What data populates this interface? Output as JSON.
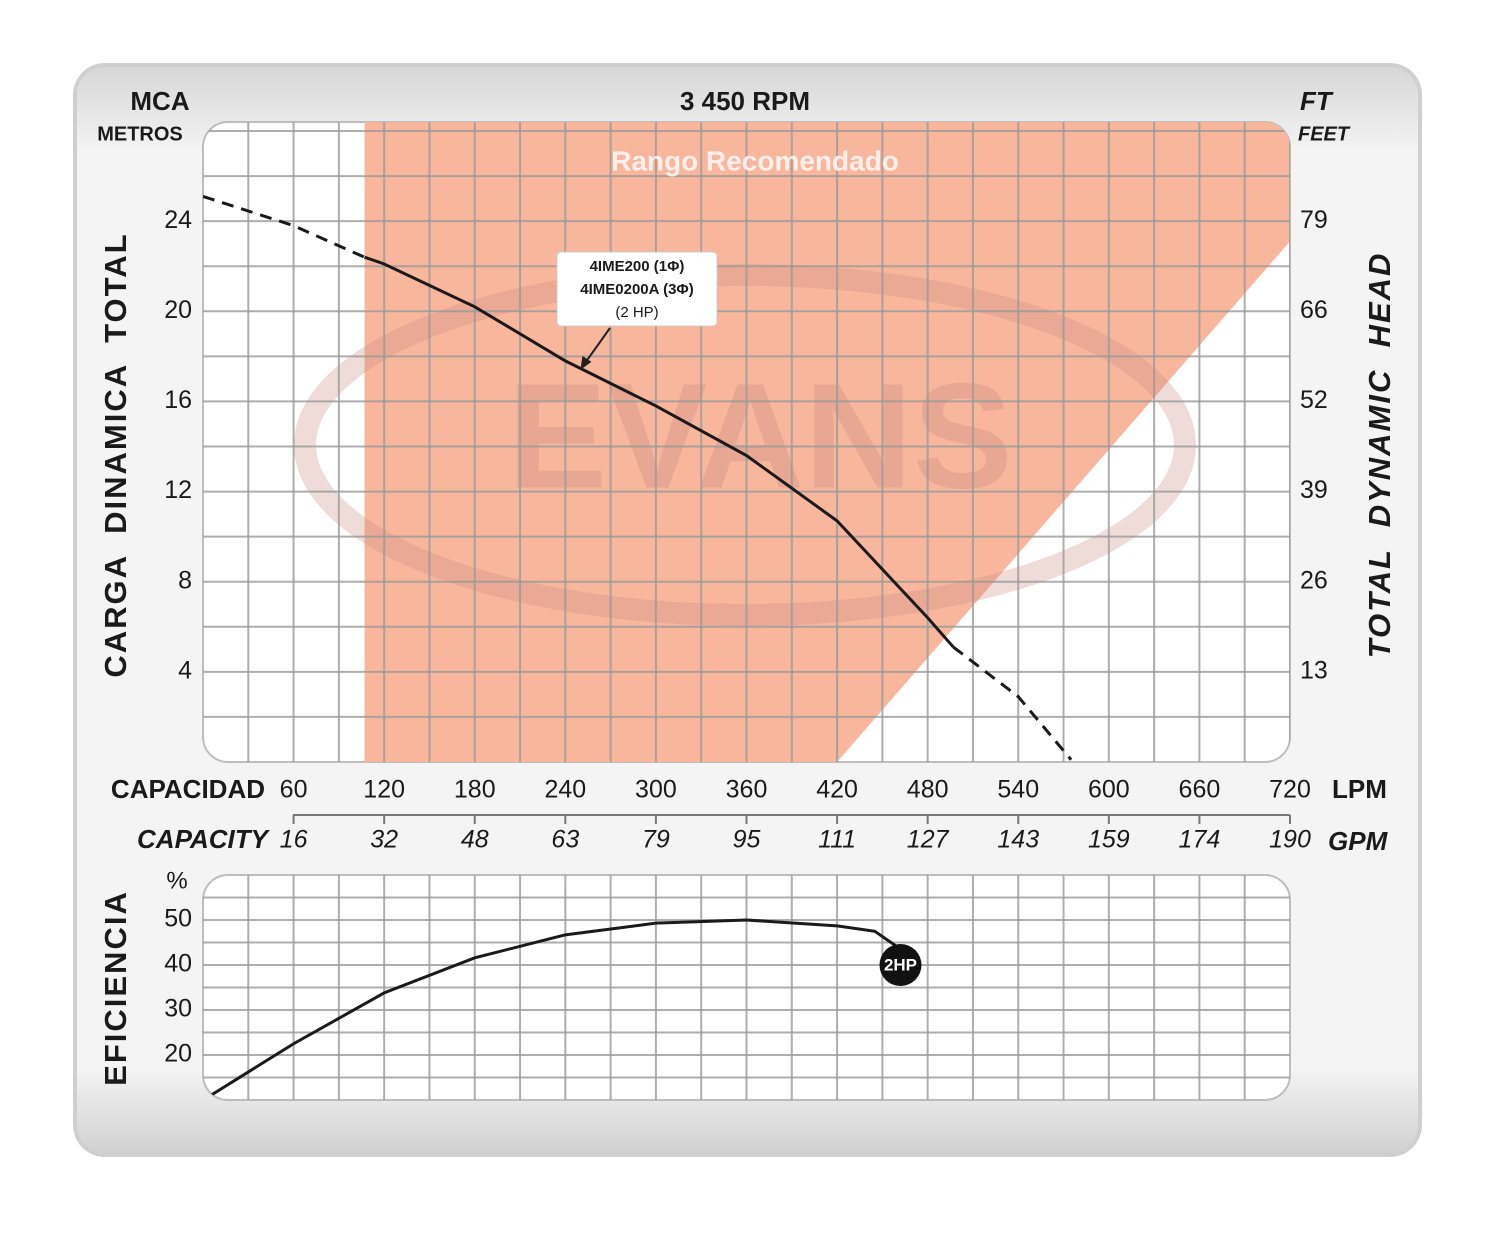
{
  "chart_data": [
    {
      "type": "line",
      "title": "3 450 RPM",
      "y_label": "MCA",
      "y_sublabel": "METROS",
      "y_title": "CARGA  DINAMICA  TOTAL",
      "y2_label": "FT",
      "y2_sublabel": "FEET",
      "y2_title": "TOTAL  DYNAMIC  HEAD",
      "x_label": "CAPACIDAD",
      "x_unit": "LPM",
      "x2_label": "CAPACITY",
      "x2_unit": "GPM",
      "xlim": [
        0,
        720
      ],
      "xticks": [
        60,
        120,
        180,
        240,
        300,
        360,
        420,
        480,
        540,
        600,
        660,
        720
      ],
      "x_minor_ticks": [
        30,
        90,
        150,
        210,
        270,
        330,
        390,
        450,
        510,
        570,
        630,
        690
      ],
      "x2lim": [
        0,
        190.2
      ],
      "x2ticks": [
        {
          "value": 15.85,
          "label": "16"
        },
        {
          "value": 31.7,
          "label": "32"
        },
        {
          "value": 47.55,
          "label": "48"
        },
        {
          "value": 63.4,
          "label": "63"
        },
        {
          "value": 79.25,
          "label": "79"
        },
        {
          "value": 95.1,
          "label": "95"
        },
        {
          "value": 110.95,
          "label": "111"
        },
        {
          "value": 126.8,
          "label": "127"
        },
        {
          "value": 142.65,
          "label": "143"
        },
        {
          "value": 158.5,
          "label": "159"
        },
        {
          "value": 174.35,
          "label": "174"
        },
        {
          "value": 190.2,
          "label": "190"
        }
      ],
      "ylim": [
        0,
        28.4
      ],
      "yticks": [
        4,
        8,
        12,
        16,
        20,
        24
      ],
      "y_minor_ticks": [
        2,
        6,
        10,
        14,
        18,
        22,
        26,
        28
      ],
      "y2lim": [
        0,
        93.18
      ],
      "y2ticks": [
        {
          "value": 13.12,
          "label": "13"
        },
        {
          "value": 26.25,
          "label": "26"
        },
        {
          "value": 39.37,
          "label": "39"
        },
        {
          "value": 52.49,
          "label": "52"
        },
        {
          "value": 65.62,
          "label": "66"
        },
        {
          "value": 78.74,
          "label": "79"
        }
      ],
      "grid": true,
      "region": {
        "label": "Rango Recomendado",
        "color": "#f8b79c",
        "x": [
          107,
          720,
          720,
          420,
          107
        ],
        "y": [
          28.4,
          28.4,
          23.1,
          0,
          0
        ]
      },
      "watermark": "EVANS",
      "series": [
        {
          "color": "#1a1a1a",
          "dash": true,
          "x": [
            0,
            60,
            107
          ],
          "values": [
            25.1,
            23.8,
            22.4
          ]
        },
        {
          "color": "#1a1a1a",
          "dash": false,
          "x": [
            107,
            120,
            180,
            240,
            300,
            360,
            420,
            480,
            497
          ],
          "values": [
            22.4,
            22.1,
            20.2,
            17.8,
            15.8,
            13.6,
            10.7,
            6.4,
            5.1
          ]
        },
        {
          "color": "#1a1a1a",
          "dash": true,
          "x": [
            497,
            540,
            575
          ],
          "values": [
            5.1,
            2.9,
            0.1
          ]
        }
      ],
      "annotation": {
        "lines": [
          "4IME200 (1Φ)",
          "4IME0200A (3Φ)",
          "(2 HP)"
        ],
        "x": 250,
        "y": 17.4
      }
    },
    {
      "type": "line",
      "y_unit": "%",
      "y_title": "EFICIENCIA",
      "xlim": [
        0,
        720
      ],
      "xgrid": [
        30,
        60,
        90,
        120,
        150,
        180,
        210,
        240,
        270,
        300,
        330,
        360,
        390,
        420,
        450,
        480,
        510,
        540,
        570,
        600,
        630,
        660,
        690
      ],
      "ylim": [
        10,
        60
      ],
      "yticks": [
        20,
        30,
        40,
        50
      ],
      "y_minor_ticks": [
        15,
        25,
        35,
        45,
        55
      ],
      "grid": true,
      "series": [
        {
          "color": "#1a1a1a",
          "end_label": "2HP",
          "x": [
            5,
            60,
            120,
            180,
            240,
            300,
            360,
            420,
            445,
            460,
            462
          ],
          "values": [
            11,
            22.5,
            33.8,
            41.6,
            46.7,
            49.3,
            50,
            48.7,
            47.5,
            44,
            40
          ]
        }
      ]
    }
  ]
}
